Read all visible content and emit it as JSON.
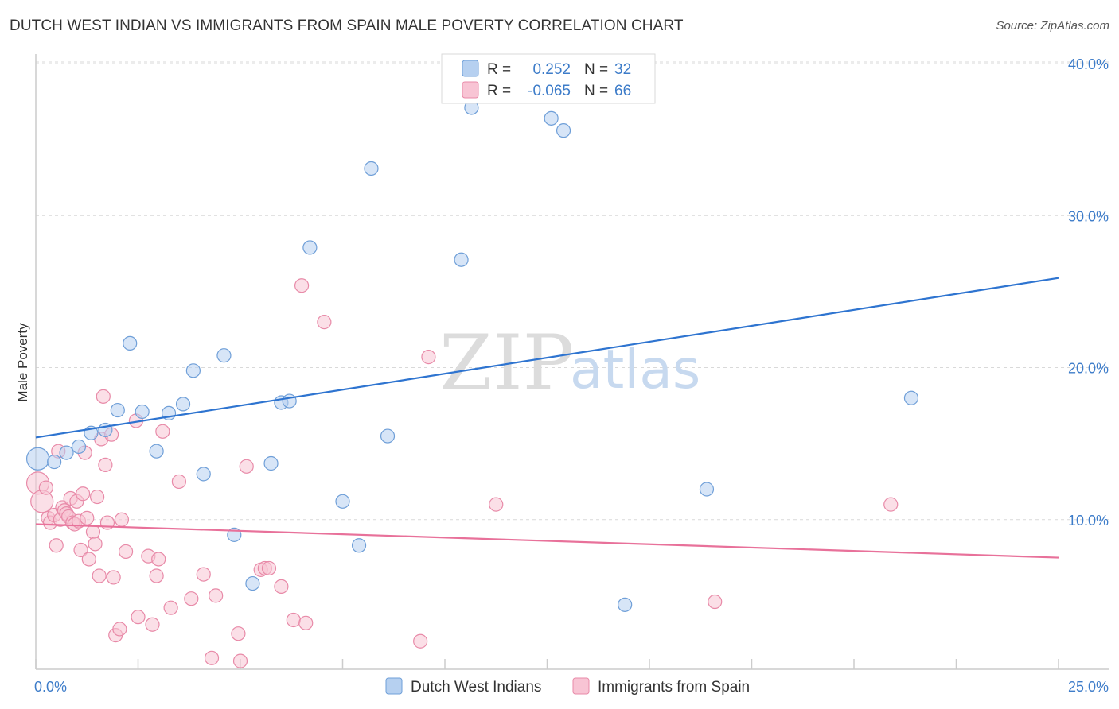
{
  "title": "DUTCH WEST INDIAN VS IMMIGRANTS FROM SPAIN MALE POVERTY CORRELATION CHART",
  "source": "Source: ZipAtlas.com",
  "watermark": {
    "zip": "ZIP",
    "atlas": "atlas"
  },
  "colors": {
    "blue_fill": "#b6d0f0",
    "blue_stroke": "#6f9fd8",
    "blue_line": "#2e74d0",
    "pink_fill": "#f8c4d4",
    "pink_stroke": "#e88aa8",
    "pink_line": "#e8719a",
    "grid": "#d9d9d9",
    "tick_text": "#3d7cc9"
  },
  "legend": {
    "rows": [
      {
        "r_label": "R =",
        "r_value": "0.252",
        "n_label": "N =",
        "n_value": "32",
        "color": "blue"
      },
      {
        "r_label": "R =",
        "r_value": "-0.065",
        "n_label": "N =",
        "n_value": "66",
        "color": "pink"
      }
    ]
  },
  "chart_data": {
    "type": "scatter",
    "title": "DUTCH WEST INDIAN VS IMMIGRANTS FROM SPAIN MALE POVERTY CORRELATION CHART",
    "xlabel": "",
    "ylabel": "Male Poverty",
    "xlim": [
      0,
      25
    ],
    "ylim": [
      0,
      40
    ],
    "x_tick_labels": [
      "0.0%",
      "25.0%"
    ],
    "y_ticks": [
      10,
      20,
      30,
      40
    ],
    "y_tick_labels": [
      "10.0%",
      "20.0%",
      "30.0%",
      "40.0%"
    ],
    "grid": true,
    "legend_position": "top-center",
    "series": [
      {
        "name": "Dutch West Indians",
        "color": "blue",
        "trend": {
          "x": [
            0,
            25
          ],
          "y": [
            15.4,
            25.9
          ]
        },
        "points": [
          {
            "x": 0.05,
            "y": 14.0,
            "big": true
          },
          {
            "x": 0.45,
            "y": 13.8
          },
          {
            "x": 0.75,
            "y": 14.4
          },
          {
            "x": 1.05,
            "y": 14.8
          },
          {
            "x": 1.35,
            "y": 15.7
          },
          {
            "x": 1.7,
            "y": 15.9
          },
          {
            "x": 2.0,
            "y": 17.2
          },
          {
            "x": 2.3,
            "y": 21.6
          },
          {
            "x": 2.6,
            "y": 17.1
          },
          {
            "x": 2.95,
            "y": 14.5
          },
          {
            "x": 3.25,
            "y": 17.0
          },
          {
            "x": 3.6,
            "y": 17.6
          },
          {
            "x": 3.85,
            "y": 19.8
          },
          {
            "x": 4.1,
            "y": 13.0
          },
          {
            "x": 4.6,
            "y": 20.8
          },
          {
            "x": 4.85,
            "y": 9.0
          },
          {
            "x": 5.3,
            "y": 5.8
          },
          {
            "x": 5.75,
            "y": 13.7
          },
          {
            "x": 6.0,
            "y": 17.7
          },
          {
            "x": 6.2,
            "y": 17.8
          },
          {
            "x": 6.7,
            "y": 27.9
          },
          {
            "x": 7.5,
            "y": 11.2
          },
          {
            "x": 7.9,
            "y": 8.3
          },
          {
            "x": 8.2,
            "y": 33.1
          },
          {
            "x": 8.6,
            "y": 15.5
          },
          {
            "x": 10.4,
            "y": 27.1
          },
          {
            "x": 10.65,
            "y": 37.1
          },
          {
            "x": 12.6,
            "y": 36.4
          },
          {
            "x": 12.9,
            "y": 35.6
          },
          {
            "x": 14.4,
            "y": 4.4
          },
          {
            "x": 16.4,
            "y": 12.0
          },
          {
            "x": 21.4,
            "y": 18.0
          }
        ]
      },
      {
        "name": "Immigrants from Spain",
        "color": "pink",
        "trend": {
          "x": [
            0,
            25
          ],
          "y": [
            9.7,
            7.5
          ]
        },
        "points": [
          {
            "x": 0.05,
            "y": 12.4,
            "big": true
          },
          {
            "x": 0.15,
            "y": 11.2,
            "big": true
          },
          {
            "x": 0.25,
            "y": 12.1
          },
          {
            "x": 0.3,
            "y": 10.1
          },
          {
            "x": 0.35,
            "y": 9.8
          },
          {
            "x": 0.45,
            "y": 10.3
          },
          {
            "x": 0.5,
            "y": 8.3
          },
          {
            "x": 0.55,
            "y": 14.5
          },
          {
            "x": 0.6,
            "y": 10.0
          },
          {
            "x": 0.65,
            "y": 10.8
          },
          {
            "x": 0.7,
            "y": 10.6
          },
          {
            "x": 0.75,
            "y": 10.4
          },
          {
            "x": 0.8,
            "y": 10.2
          },
          {
            "x": 0.85,
            "y": 11.4
          },
          {
            "x": 0.9,
            "y": 9.8
          },
          {
            "x": 0.95,
            "y": 9.7
          },
          {
            "x": 1.0,
            "y": 11.2
          },
          {
            "x": 1.05,
            "y": 9.9
          },
          {
            "x": 1.1,
            "y": 8.0
          },
          {
            "x": 1.15,
            "y": 11.7
          },
          {
            "x": 1.2,
            "y": 14.4
          },
          {
            "x": 1.3,
            "y": 7.4
          },
          {
            "x": 1.4,
            "y": 9.2
          },
          {
            "x": 1.45,
            "y": 8.4
          },
          {
            "x": 1.5,
            "y": 11.5
          },
          {
            "x": 1.55,
            "y": 6.3
          },
          {
            "x": 1.6,
            "y": 15.3
          },
          {
            "x": 1.65,
            "y": 18.1
          },
          {
            "x": 1.7,
            "y": 13.6
          },
          {
            "x": 1.75,
            "y": 9.8
          },
          {
            "x": 1.85,
            "y": 15.6
          },
          {
            "x": 1.9,
            "y": 6.2
          },
          {
            "x": 1.95,
            "y": 2.4
          },
          {
            "x": 2.05,
            "y": 2.8
          },
          {
            "x": 2.1,
            "y": 10.0
          },
          {
            "x": 2.2,
            "y": 7.9
          },
          {
            "x": 2.45,
            "y": 16.5
          },
          {
            "x": 2.5,
            "y": 3.6
          },
          {
            "x": 2.75,
            "y": 7.6
          },
          {
            "x": 2.85,
            "y": 3.1
          },
          {
            "x": 2.95,
            "y": 6.3
          },
          {
            "x": 3.0,
            "y": 7.4
          },
          {
            "x": 3.1,
            "y": 15.8
          },
          {
            "x": 3.3,
            "y": 4.2
          },
          {
            "x": 3.5,
            "y": 12.5
          },
          {
            "x": 3.8,
            "y": 4.8
          },
          {
            "x": 4.1,
            "y": 6.4
          },
          {
            "x": 4.3,
            "y": 0.9
          },
          {
            "x": 4.4,
            "y": 5.0
          },
          {
            "x": 4.95,
            "y": 2.5
          },
          {
            "x": 5.0,
            "y": 0.7
          },
          {
            "x": 5.15,
            "y": 13.5
          },
          {
            "x": 5.5,
            "y": 6.7
          },
          {
            "x": 5.6,
            "y": 6.8
          },
          {
            "x": 5.7,
            "y": 6.8
          },
          {
            "x": 6.0,
            "y": 5.6
          },
          {
            "x": 6.3,
            "y": 3.4
          },
          {
            "x": 6.5,
            "y": 25.4
          },
          {
            "x": 6.6,
            "y": 3.2
          },
          {
            "x": 7.05,
            "y": 23.0
          },
          {
            "x": 9.4,
            "y": 2.0
          },
          {
            "x": 9.6,
            "y": 20.7
          },
          {
            "x": 11.25,
            "y": 11.0
          },
          {
            "x": 16.6,
            "y": 4.6
          },
          {
            "x": 20.9,
            "y": 11.0
          },
          {
            "x": 1.25,
            "y": 10.1
          }
        ]
      }
    ]
  }
}
